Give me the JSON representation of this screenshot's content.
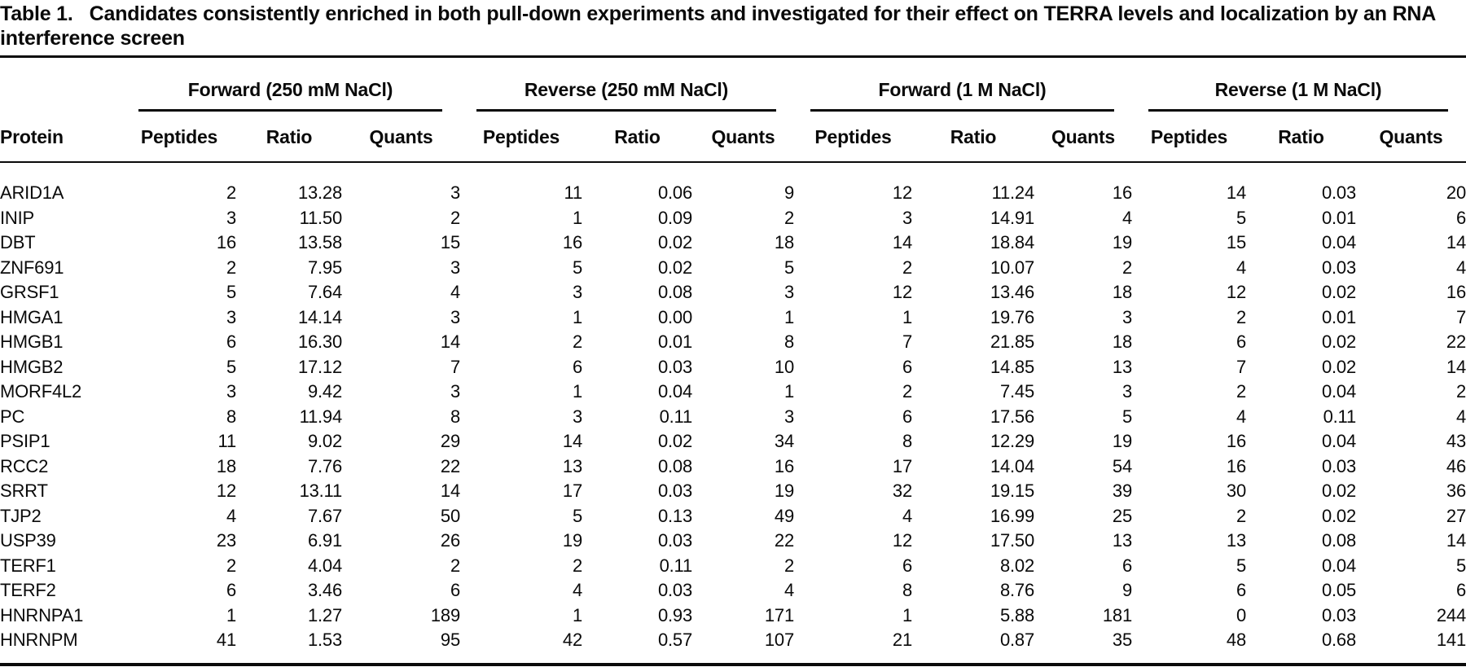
{
  "title": {
    "label": "Table 1.",
    "text": "Candidates consistently enriched in both pull-down experiments and investigated for their effect on TERRA levels and localization by an RNA interference screen"
  },
  "colors": {
    "text": "#0a0a0a",
    "background": "#ffffff",
    "rule": "#0a0a0a"
  },
  "table": {
    "protein_header": "Protein",
    "groups": [
      {
        "label": "Forward (250 mM NaCl)"
      },
      {
        "label": "Reverse (250 mM NaCl)"
      },
      {
        "label": "Forward (1 M NaCl)"
      },
      {
        "label": "Reverse (1 M NaCl)"
      }
    ],
    "sub_headers": [
      "Peptides",
      "Ratio",
      "Quants"
    ],
    "rows": [
      {
        "protein": "ARID1A",
        "values": [
          "2",
          "13.28",
          "3",
          "11",
          "0.06",
          "9",
          "12",
          "11.24",
          "16",
          "14",
          "0.03",
          "20"
        ]
      },
      {
        "protein": "INIP",
        "values": [
          "3",
          "11.50",
          "2",
          "1",
          "0.09",
          "2",
          "3",
          "14.91",
          "4",
          "5",
          "0.01",
          "6"
        ]
      },
      {
        "protein": "DBT",
        "values": [
          "16",
          "13.58",
          "15",
          "16",
          "0.02",
          "18",
          "14",
          "18.84",
          "19",
          "15",
          "0.04",
          "14"
        ]
      },
      {
        "protein": "ZNF691",
        "values": [
          "2",
          "7.95",
          "3",
          "5",
          "0.02",
          "5",
          "2",
          "10.07",
          "2",
          "4",
          "0.03",
          "4"
        ]
      },
      {
        "protein": "GRSF1",
        "values": [
          "5",
          "7.64",
          "4",
          "3",
          "0.08",
          "3",
          "12",
          "13.46",
          "18",
          "12",
          "0.02",
          "16"
        ]
      },
      {
        "protein": "HMGA1",
        "values": [
          "3",
          "14.14",
          "3",
          "1",
          "0.00",
          "1",
          "1",
          "19.76",
          "3",
          "2",
          "0.01",
          "7"
        ]
      },
      {
        "protein": "HMGB1",
        "values": [
          "6",
          "16.30",
          "14",
          "2",
          "0.01",
          "8",
          "7",
          "21.85",
          "18",
          "6",
          "0.02",
          "22"
        ]
      },
      {
        "protein": "HMGB2",
        "values": [
          "5",
          "17.12",
          "7",
          "6",
          "0.03",
          "10",
          "6",
          "14.85",
          "13",
          "7",
          "0.02",
          "14"
        ]
      },
      {
        "protein": "MORF4L2",
        "values": [
          "3",
          "9.42",
          "3",
          "1",
          "0.04",
          "1",
          "2",
          "7.45",
          "3",
          "2",
          "0.04",
          "2"
        ]
      },
      {
        "protein": "PC",
        "values": [
          "8",
          "11.94",
          "8",
          "3",
          "0.11",
          "3",
          "6",
          "17.56",
          "5",
          "4",
          "0.11",
          "4"
        ]
      },
      {
        "protein": "PSIP1",
        "values": [
          "11",
          "9.02",
          "29",
          "14",
          "0.02",
          "34",
          "8",
          "12.29",
          "19",
          "16",
          "0.04",
          "43"
        ]
      },
      {
        "protein": "RCC2",
        "values": [
          "18",
          "7.76",
          "22",
          "13",
          "0.08",
          "16",
          "17",
          "14.04",
          "54",
          "16",
          "0.03",
          "46"
        ]
      },
      {
        "protein": "SRRT",
        "values": [
          "12",
          "13.11",
          "14",
          "17",
          "0.03",
          "19",
          "32",
          "19.15",
          "39",
          "30",
          "0.02",
          "36"
        ]
      },
      {
        "protein": "TJP2",
        "values": [
          "4",
          "7.67",
          "50",
          "5",
          "0.13",
          "49",
          "4",
          "16.99",
          "25",
          "2",
          "0.02",
          "27"
        ]
      },
      {
        "protein": "USP39",
        "values": [
          "23",
          "6.91",
          "26",
          "19",
          "0.03",
          "22",
          "12",
          "17.50",
          "13",
          "13",
          "0.08",
          "14"
        ]
      },
      {
        "protein": "TERF1",
        "values": [
          "2",
          "4.04",
          "2",
          "2",
          "0.11",
          "2",
          "6",
          "8.02",
          "6",
          "5",
          "0.04",
          "5"
        ]
      },
      {
        "protein": "TERF2",
        "values": [
          "6",
          "3.46",
          "6",
          "4",
          "0.03",
          "4",
          "8",
          "8.76",
          "9",
          "6",
          "0.05",
          "6"
        ]
      },
      {
        "protein": "HNRNPA1",
        "values": [
          "1",
          "1.27",
          "189",
          "1",
          "0.93",
          "171",
          "1",
          "5.88",
          "181",
          "0",
          "0.03",
          "244"
        ]
      },
      {
        "protein": "HNRNPM",
        "values": [
          "41",
          "1.53",
          "95",
          "42",
          "0.57",
          "107",
          "21",
          "0.87",
          "35",
          "48",
          "0.68",
          "141"
        ]
      }
    ]
  }
}
